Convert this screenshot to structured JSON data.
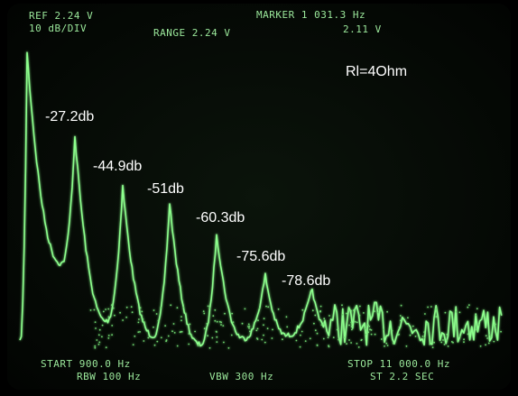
{
  "screen": {
    "header": {
      "ref": "REF 2.24 V",
      "scale": "10 dB/DIV",
      "range": "RANGE 2.24 V",
      "marker": "MARKER 1 031.3 Hz",
      "marker_level": "2.11 V"
    },
    "annotations": {
      "load": "Rl=4Ohm",
      "peaks": [
        "-27.2db",
        "-44.9db",
        "-51db",
        "-60.3db",
        "-75.6db",
        "-78.6db"
      ]
    },
    "footer": {
      "start": "START 900.0 Hz",
      "rbw": "RBW 100 Hz",
      "vbw": "VBW 300 Hz",
      "stop": "STOP 11 000.0 Hz",
      "sweep": "ST 2.2 SEC"
    }
  }
}
